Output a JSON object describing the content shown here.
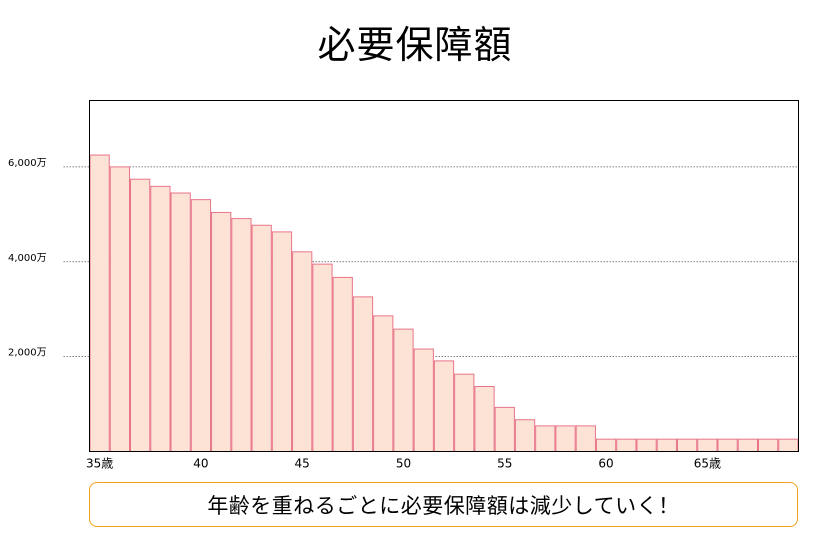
{
  "page": {
    "title": "必要保障額",
    "caption": "年齢を重ねるごとに必要保障額は減少していく！"
  },
  "colors": {
    "bar_fill": "#fde3d6",
    "bar_stroke": "#e8758a",
    "gridline": "#555555",
    "caption_border": "#f0a21c"
  },
  "chart_data": {
    "type": "bar",
    "title": "",
    "xlabel": "",
    "ylabel": "",
    "ylim": [
      0,
      7400
    ],
    "yticks": [
      {
        "value": 2000,
        "label": "2,000万"
      },
      {
        "value": 4000,
        "label": "4,000万"
      },
      {
        "value": 6000,
        "label": "6,000万"
      }
    ],
    "xticks": [
      {
        "age": 35,
        "label": "35歳"
      },
      {
        "age": 40,
        "label": "40"
      },
      {
        "age": 45,
        "label": "45"
      },
      {
        "age": 50,
        "label": "50"
      },
      {
        "age": 55,
        "label": "55"
      },
      {
        "age": 60,
        "label": "60"
      },
      {
        "age": 65,
        "label": "65歳"
      }
    ],
    "grid": true,
    "categories": [
      35,
      36,
      37,
      38,
      39,
      40,
      41,
      42,
      43,
      44,
      45,
      46,
      47,
      48,
      49,
      50,
      51,
      52,
      53,
      54,
      55,
      56,
      57,
      58,
      59,
      60,
      61,
      62,
      63,
      64,
      65,
      66,
      67,
      68,
      69
    ],
    "values": [
      6250,
      6000,
      5740,
      5590,
      5450,
      5310,
      5040,
      4910,
      4770,
      4630,
      4210,
      3950,
      3670,
      3260,
      2860,
      2580,
      2160,
      1910,
      1630,
      1370,
      930,
      670,
      540,
      540,
      540,
      260,
      260,
      260,
      260,
      260,
      260,
      260,
      260,
      260,
      260
    ]
  }
}
